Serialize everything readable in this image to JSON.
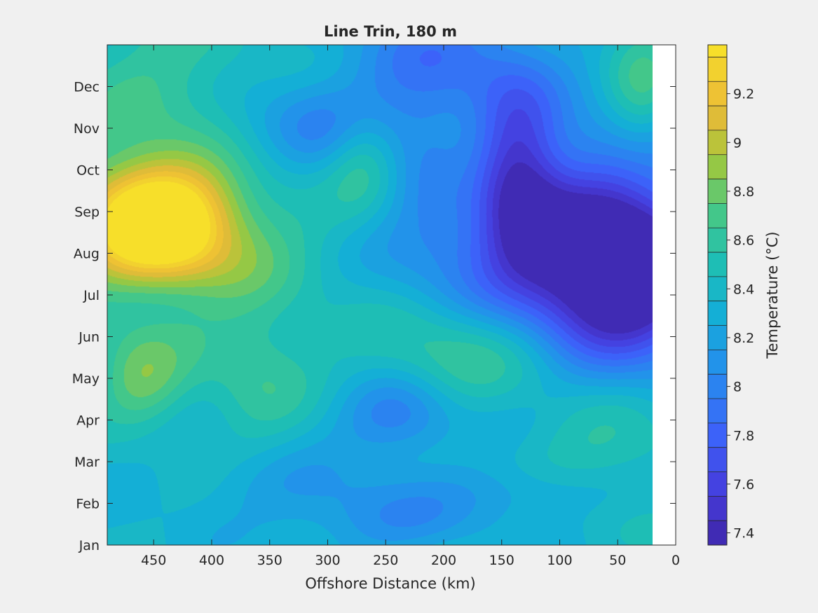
{
  "chart_data": {
    "type": "heatmap",
    "subtype": "filled-contour",
    "title": "Line Trin, 180 m",
    "xlabel": "Offshore Distance (km)",
    "ylabel": "",
    "x_direction": "reversed",
    "xlim": [
      0,
      490
    ],
    "x_ticks": [
      450,
      400,
      350,
      300,
      250,
      200,
      150,
      100,
      50,
      0
    ],
    "y_ticks": [
      "Jan",
      "Feb",
      "Mar",
      "Apr",
      "May",
      "Jun",
      "Jul",
      "Aug",
      "Sep",
      "Oct",
      "Nov",
      "Dec"
    ],
    "data_x_range_km": [
      20,
      490
    ],
    "colorbar": {
      "label": "Temperature (°C)",
      "min": 7.35,
      "max": 9.4,
      "step": 0.1,
      "ticks": [
        7.4,
        7.6,
        7.8,
        8,
        8.2,
        8.4,
        8.6,
        8.8,
        9,
        9.2
      ],
      "tick_labels": [
        "7.4",
        "7.6",
        "7.8",
        "8",
        "8.2",
        "8.4",
        "8.6",
        "8.8",
        "9",
        "9.2"
      ]
    },
    "background_level": 8.35,
    "features": [
      {
        "x": 445,
        "month": 7.8,
        "value": 9.15,
        "sx": 40,
        "sy": 0.9
      },
      {
        "x": 460,
        "month": 7.5,
        "value": 8.85,
        "sx": 60,
        "sy": 1.6
      },
      {
        "x": 410,
        "month": 7.3,
        "value": 8.65,
        "sx": 80,
        "sy": 1.4
      },
      {
        "x": 440,
        "month": 11.3,
        "value": 8.6,
        "sx": 60,
        "sy": 1.3
      },
      {
        "x": 460,
        "month": 3.9,
        "value": 8.75,
        "sx": 28,
        "sy": 0.8
      },
      {
        "x": 360,
        "month": 4.2,
        "value": 8.6,
        "sx": 35,
        "sy": 1.3
      },
      {
        "x": 270,
        "month": 9.3,
        "value": 8.7,
        "sx": 22,
        "sy": 0.9
      },
      {
        "x": 185,
        "month": 4.6,
        "value": 8.7,
        "sx": 60,
        "sy": 0.9
      },
      {
        "x": 180,
        "month": 9.0,
        "value": 8.55,
        "sx": 22,
        "sy": 1.2
      },
      {
        "x": 60,
        "month": 2.2,
        "value": 8.6,
        "sx": 50,
        "sy": 1.1
      },
      {
        "x": 30,
        "month": 11.0,
        "value": 8.7,
        "sx": 22,
        "sy": 1.2
      },
      {
        "x": 45,
        "month": 6.5,
        "value": 7.4,
        "sx": 50,
        "sy": 1.3
      },
      {
        "x": 65,
        "month": 7.2,
        "value": 7.75,
        "sx": 80,
        "sy": 2.0
      },
      {
        "x": 200,
        "month": 11.3,
        "value": 7.9,
        "sx": 60,
        "sy": 1.5
      },
      {
        "x": 135,
        "month": 9.0,
        "value": 7.85,
        "sx": 25,
        "sy": 1.5
      },
      {
        "x": 170,
        "month": 7.5,
        "value": 8.0,
        "sx": 60,
        "sy": 1.2
      },
      {
        "x": 240,
        "month": 3.1,
        "value": 7.95,
        "sx": 35,
        "sy": 0.7
      },
      {
        "x": 320,
        "month": 10.0,
        "value": 8.05,
        "sx": 50,
        "sy": 0.8
      },
      {
        "x": 450,
        "month": 5.9,
        "value": 8.2,
        "sx": 50,
        "sy": 0.6
      },
      {
        "x": 330,
        "month": 1.5,
        "value": 8.2,
        "sx": 60,
        "sy": 0.6
      },
      {
        "x": 120,
        "month": 1.3,
        "value": 8.15,
        "sx": 60,
        "sy": 0.5
      },
      {
        "x": 250,
        "month": 0.6,
        "value": 8.1,
        "sx": 60,
        "sy": 0.6
      }
    ]
  }
}
